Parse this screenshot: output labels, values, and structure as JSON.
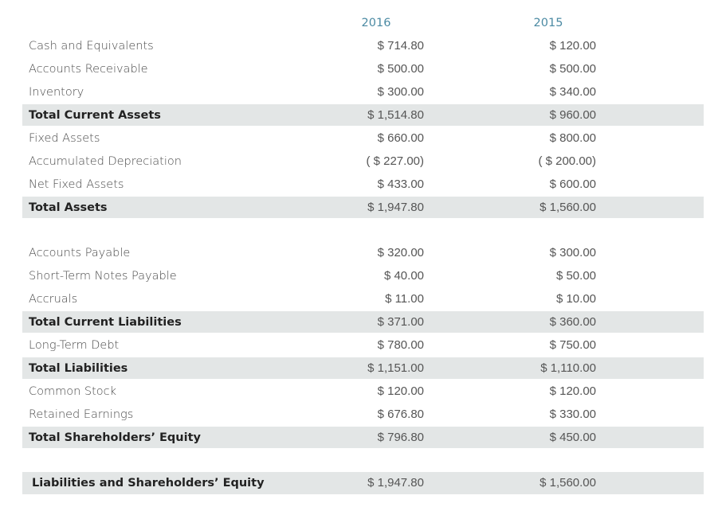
{
  "table": {
    "columns": [
      "2016",
      "2015"
    ],
    "groups": [
      [
        {
          "label": "Cash and Equivalents",
          "values": [
            "$ 714.80",
            "$ 120.00"
          ]
        },
        {
          "label": "Accounts Receivable",
          "values": [
            "$ 500.00",
            "$ 500.00"
          ]
        },
        {
          "label": "Inventory",
          "values": [
            "$ 300.00",
            "$ 340.00"
          ]
        },
        {
          "label": "Total Current Assets",
          "values": [
            "$ 1,514.80",
            "$ 960.00"
          ],
          "total": true
        },
        {
          "label": "Fixed Assets",
          "values": [
            "$ 660.00",
            "$ 800.00"
          ]
        },
        {
          "label": "Accumulated Depreciation",
          "values": [
            "( $ 227.00)",
            "( $ 200.00)"
          ]
        },
        {
          "label": "Net Fixed Assets",
          "values": [
            "$ 433.00",
            "$ 600.00"
          ]
        },
        {
          "label": "Total Assets",
          "values": [
            "$ 1,947.80",
            "$ 1,560.00"
          ],
          "total": true
        }
      ],
      [
        {
          "label": "Accounts Payable",
          "values": [
            "$ 320.00",
            "$ 300.00"
          ]
        },
        {
          "label": "Short-Term Notes Payable",
          "values": [
            "$ 40.00",
            "$ 50.00"
          ]
        },
        {
          "label": "Accruals",
          "values": [
            "$ 11.00",
            "$ 10.00"
          ]
        },
        {
          "label": "Total Current Liabilities",
          "values": [
            "$ 371.00",
            "$ 360.00"
          ],
          "total": true
        },
        {
          "label": "Long-Term Debt",
          "values": [
            "$ 780.00",
            "$ 750.00"
          ]
        },
        {
          "label": "Total Liabilities",
          "values": [
            "$ 1,151.00",
            "$ 1,110.00"
          ],
          "total": true
        },
        {
          "label": "Common Stock",
          "values": [
            "$ 120.00",
            "$ 120.00"
          ]
        },
        {
          "label": "Retained Earnings",
          "values": [
            "$ 676.80",
            "$ 330.00"
          ]
        },
        {
          "label": "Total Shareholders’ Equity",
          "values": [
            "$ 796.80",
            "$ 450.00"
          ],
          "total": true
        }
      ],
      [
        {
          "label": "Liabilities and Shareholders’ Equity",
          "values": [
            "$ 1,947.80",
            "$ 1,560.00"
          ],
          "total": true
        }
      ]
    ]
  }
}
